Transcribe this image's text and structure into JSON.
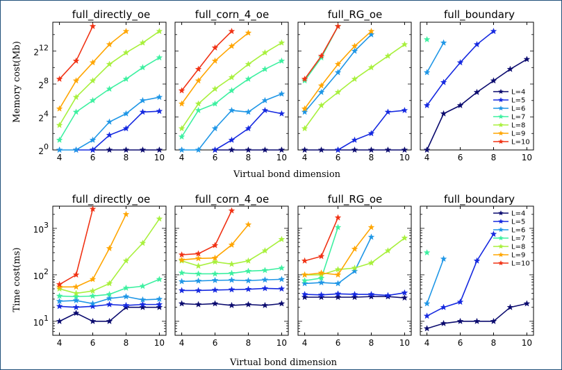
{
  "series_names": [
    "L=4",
    "L=5",
    "L=6",
    "L=7",
    "L=8",
    "L=9",
    "L=10"
  ],
  "series_colors": [
    "#0a0a6e",
    "#1428e0",
    "#1e96e6",
    "#3cf0a0",
    "#a8f03c",
    "#ffa500",
    "#f03214"
  ],
  "chart_data": [
    {
      "type": "line",
      "title": "full_directly_oe",
      "xlabel": "",
      "ylabel": "Memory cost(Mb)",
      "xlim": [
        3.6,
        10.4
      ],
      "ylim": [
        0,
        15.5
      ],
      "yscale": "log2",
      "xticks": [
        4,
        6,
        8,
        10
      ],
      "yticks": [
        {
          "value": 0,
          "label": "2^0"
        },
        {
          "value": 4,
          "label": "2^4"
        },
        {
          "value": 8,
          "label": "2^8"
        },
        {
          "value": 12,
          "label": "2^12"
        }
      ],
      "legend": "none",
      "series": [
        {
          "name": "L=4",
          "x": [
            6,
            7,
            8,
            9,
            10
          ],
          "y": [
            0,
            0,
            0,
            0,
            0
          ]
        },
        {
          "name": "L=5",
          "x": [
            5,
            6,
            7,
            8,
            9,
            10
          ],
          "y": [
            0,
            0,
            1.8,
            2.6,
            4.6,
            4.7
          ]
        },
        {
          "name": "L=6",
          "x": [
            4,
            5,
            6,
            7,
            8,
            9,
            10
          ],
          "y": [
            0,
            0,
            1.2,
            3.4,
            4.4,
            6,
            6.4
          ]
        },
        {
          "name": "L=7",
          "x": [
            4,
            5,
            6,
            7,
            8,
            9,
            10
          ],
          "y": [
            1.2,
            4.6,
            6,
            7.4,
            8.6,
            10,
            11.2
          ]
        },
        {
          "name": "L=8",
          "x": [
            4,
            5,
            6,
            7,
            8,
            9,
            10
          ],
          "y": [
            3,
            6.4,
            8.4,
            10.4,
            11.8,
            13,
            14.4
          ]
        },
        {
          "name": "L=9",
          "x": [
            4,
            5,
            6,
            7,
            8
          ],
          "y": [
            5,
            8.4,
            10.6,
            12.8,
            14.4
          ]
        },
        {
          "name": "L=10",
          "x": [
            4,
            5,
            6
          ],
          "y": [
            8.6,
            10.8,
            15
          ]
        }
      ]
    },
    {
      "type": "line",
      "title": "full_corn_4_oe",
      "xlabel": "",
      "ylabel": "",
      "xlim": [
        3.6,
        10.4
      ],
      "ylim": [
        0,
        15.5
      ],
      "yscale": "log2",
      "xticks": [
        4,
        6,
        8,
        10
      ],
      "yticks": [],
      "legend": "none",
      "series": [
        {
          "name": "L=4",
          "x": [
            6,
            7,
            8,
            9,
            10
          ],
          "y": [
            0,
            0,
            0,
            0,
            0
          ]
        },
        {
          "name": "L=5",
          "x": [
            6,
            7,
            8,
            9,
            10
          ],
          "y": [
            0,
            1.2,
            2.6,
            4.8,
            4.4
          ]
        },
        {
          "name": "L=6",
          "x": [
            4,
            5,
            6,
            7,
            8,
            9,
            10
          ],
          "y": [
            0,
            0,
            2.6,
            4.8,
            4.6,
            6,
            6.8
          ]
        },
        {
          "name": "L=7",
          "x": [
            4,
            5,
            6,
            7,
            8,
            9,
            10
          ],
          "y": [
            1.6,
            4.8,
            5.6,
            7.2,
            8.6,
            9.8,
            10.8
          ]
        },
        {
          "name": "L=8",
          "x": [
            4,
            5,
            6,
            7,
            8,
            9,
            10
          ],
          "y": [
            2.6,
            5.6,
            7.4,
            8.8,
            10.4,
            11.8,
            13
          ]
        },
        {
          "name": "L=9",
          "x": [
            4,
            5,
            6,
            7,
            8
          ],
          "y": [
            5.6,
            8.4,
            10.8,
            12.6,
            14.2
          ]
        },
        {
          "name": "L=10",
          "x": [
            4,
            5,
            6,
            7
          ],
          "y": [
            7.2,
            9.8,
            12.4,
            14.4
          ]
        }
      ]
    },
    {
      "type": "line",
      "title": "full_RG_oe",
      "xlabel": "",
      "ylabel": "",
      "xlim": [
        3.6,
        10.4
      ],
      "ylim": [
        0,
        15.5
      ],
      "yscale": "log2",
      "xticks": [
        4,
        6,
        8,
        10
      ],
      "yticks": [],
      "legend": "none",
      "series": [
        {
          "name": "L=4",
          "x": [
            4,
            5,
            6,
            7,
            8,
            9,
            10
          ],
          "y": [
            0,
            0,
            0,
            0,
            0,
            0,
            0
          ]
        },
        {
          "name": "L=5",
          "x": [
            6,
            7,
            8,
            9,
            10
          ],
          "y": [
            0,
            1.2,
            2,
            4.6,
            4.8
          ]
        },
        {
          "name": "L=6",
          "x": [
            4,
            5,
            6,
            7,
            8
          ],
          "y": [
            4.6,
            7,
            9.4,
            12,
            14
          ]
        },
        {
          "name": "L=7",
          "x": [
            4,
            5,
            6
          ],
          "y": [
            8.4,
            11.2,
            15
          ]
        },
        {
          "name": "L=8",
          "x": [
            4,
            5,
            6,
            7,
            8,
            9,
            10
          ],
          "y": [
            2.6,
            5.4,
            7,
            8.6,
            10,
            11.4,
            12.8
          ]
        },
        {
          "name": "L=9",
          "x": [
            4,
            5,
            6,
            7,
            8
          ],
          "y": [
            5,
            7.8,
            10.4,
            12.6,
            14.4
          ]
        },
        {
          "name": "L=10",
          "x": [
            4,
            5,
            6
          ],
          "y": [
            8.6,
            11.4,
            15
          ]
        }
      ]
    },
    {
      "type": "line",
      "title": "full_boundary",
      "xlabel": "",
      "ylabel": "",
      "xlim": [
        3.6,
        10.4
      ],
      "ylim": [
        0,
        15.5
      ],
      "yscale": "log2",
      "xticks": [
        4,
        6,
        8,
        10
      ],
      "yticks": [],
      "legend": "right",
      "series": [
        {
          "name": "L=4",
          "x": [
            4,
            5,
            6,
            7,
            8,
            9,
            10
          ],
          "y": [
            0,
            4.4,
            5.4,
            7,
            8.4,
            9.8,
            11
          ]
        },
        {
          "name": "L=5",
          "x": [
            4,
            5,
            6,
            7,
            8
          ],
          "y": [
            5.4,
            8.2,
            10.6,
            12.8,
            14.4
          ]
        },
        {
          "name": "L=6",
          "x": [
            4,
            5
          ],
          "y": [
            9.4,
            13
          ]
        },
        {
          "name": "L=7",
          "x": [
            4
          ],
          "y": [
            13.4
          ]
        }
      ]
    },
    {
      "type": "line",
      "title": "full_directly_oe",
      "xlabel": "",
      "ylabel": "Time cost(ms)",
      "xlim": [
        3.6,
        10.4
      ],
      "ylim": [
        5,
        3000
      ],
      "yscale": "log10",
      "xticks": [
        4,
        6,
        8,
        10
      ],
      "yticks": [
        {
          "value": 10,
          "label": "10^1"
        },
        {
          "value": 100,
          "label": "10^2"
        },
        {
          "value": 1000,
          "label": "10^3"
        }
      ],
      "legend": "none",
      "series": [
        {
          "name": "L=4",
          "x": [
            4,
            5,
            6,
            7,
            8,
            9,
            10
          ],
          "y": [
            10,
            15,
            10,
            10,
            20,
            20,
            20
          ]
        },
        {
          "name": "L=5",
          "x": [
            4,
            5,
            6,
            7,
            8,
            9,
            10
          ],
          "y": [
            21,
            20,
            21,
            23,
            22,
            23,
            23
          ]
        },
        {
          "name": "L=6",
          "x": [
            4,
            5,
            6,
            7,
            8,
            9,
            10
          ],
          "y": [
            27,
            28,
            24,
            31,
            34,
            29,
            30
          ]
        },
        {
          "name": "L=7",
          "x": [
            4,
            5,
            6,
            7,
            8,
            9,
            10
          ],
          "y": [
            35,
            34,
            35,
            38,
            52,
            57,
            80
          ]
        },
        {
          "name": "L=8",
          "x": [
            4,
            5,
            6,
            7,
            8,
            9,
            10
          ],
          "y": [
            50,
            40,
            45,
            65,
            200,
            480,
            1600
          ]
        },
        {
          "name": "L=9",
          "x": [
            4,
            5,
            6,
            7,
            8
          ],
          "y": [
            55,
            55,
            80,
            370,
            2000
          ]
        },
        {
          "name": "L=10",
          "x": [
            4,
            5,
            6
          ],
          "y": [
            62,
            100,
            2600
          ]
        }
      ]
    },
    {
      "type": "line",
      "title": "full_corn_4_oe",
      "xlabel": "",
      "ylabel": "",
      "xlim": [
        3.6,
        10.4
      ],
      "ylim": [
        5,
        3000
      ],
      "yscale": "log10",
      "xticks": [
        4,
        6,
        8,
        10
      ],
      "yticks": [],
      "legend": "none",
      "series": [
        {
          "name": "L=4",
          "x": [
            4,
            5,
            6,
            7,
            8,
            9,
            10
          ],
          "y": [
            24,
            23,
            24,
            22,
            23,
            22,
            24
          ]
        },
        {
          "name": "L=5",
          "x": [
            4,
            5,
            6,
            7,
            8,
            9,
            10
          ],
          "y": [
            46,
            46,
            47,
            48,
            49,
            51,
            50
          ]
        },
        {
          "name": "L=6",
          "x": [
            4,
            5,
            6,
            7,
            8,
            9,
            10
          ],
          "y": [
            72,
            74,
            76,
            77,
            75,
            78,
            80
          ]
        },
        {
          "name": "L=7",
          "x": [
            4,
            5,
            6,
            7,
            8,
            9,
            10
          ],
          "y": [
            110,
            105,
            105,
            108,
            120,
            125,
            140
          ]
        },
        {
          "name": "L=8",
          "x": [
            4,
            5,
            6,
            7,
            8,
            9,
            10
          ],
          "y": [
            200,
            155,
            190,
            170,
            200,
            330,
            580
          ]
        },
        {
          "name": "L=9",
          "x": [
            4,
            5,
            6,
            7,
            8
          ],
          "y": [
            210,
            225,
            230,
            440,
            1200
          ]
        },
        {
          "name": "L=10",
          "x": [
            4,
            5,
            6,
            7
          ],
          "y": [
            270,
            285,
            430,
            2400
          ]
        }
      ]
    },
    {
      "type": "line",
      "title": "full_RG_oe",
      "xlabel": "",
      "ylabel": "",
      "xlim": [
        3.6,
        10.4
      ],
      "ylim": [
        5,
        3000
      ],
      "yscale": "log10",
      "xticks": [
        4,
        6,
        8,
        10
      ],
      "yticks": [],
      "legend": "none",
      "series": [
        {
          "name": "L=4",
          "x": [
            4,
            5,
            6,
            7,
            8,
            9,
            10
          ],
          "y": [
            33,
            33,
            33,
            33,
            34,
            34,
            32
          ]
        },
        {
          "name": "L=5",
          "x": [
            4,
            5,
            6,
            7,
            8,
            9,
            10
          ],
          "y": [
            38,
            37,
            39,
            38,
            38,
            36,
            41
          ]
        },
        {
          "name": "L=6",
          "x": [
            4,
            5,
            6,
            7,
            8
          ],
          "y": [
            65,
            68,
            65,
            120,
            650
          ]
        },
        {
          "name": "L=7",
          "x": [
            4,
            5,
            6
          ],
          "y": [
            75,
            85,
            1050
          ]
        },
        {
          "name": "L=8",
          "x": [
            4,
            5,
            6,
            7,
            8,
            9,
            10
          ],
          "y": [
            100,
            100,
            130,
            140,
            180,
            330,
            620
          ]
        },
        {
          "name": "L=9",
          "x": [
            4,
            5,
            6,
            7,
            8
          ],
          "y": [
            100,
            110,
            100,
            360,
            1050
          ]
        },
        {
          "name": "L=10",
          "x": [
            4,
            5,
            6
          ],
          "y": [
            200,
            250,
            1700
          ]
        }
      ]
    },
    {
      "type": "line",
      "title": "full_boundary",
      "xlabel": "",
      "ylabel": "",
      "xlim": [
        3.6,
        10.4
      ],
      "ylim": [
        5,
        3000
      ],
      "yscale": "log10",
      "xticks": [
        4,
        6,
        8,
        10
      ],
      "yticks": [],
      "legend": "top-right",
      "series": [
        {
          "name": "L=4",
          "x": [
            4,
            5,
            6,
            7,
            8,
            9,
            10
          ],
          "y": [
            7,
            9,
            10,
            10,
            10,
            20,
            24
          ]
        },
        {
          "name": "L=5",
          "x": [
            4,
            5,
            6,
            7,
            8
          ],
          "y": [
            13,
            20,
            26,
            200,
            750
          ]
        },
        {
          "name": "L=6",
          "x": [
            4,
            5
          ],
          "y": [
            24,
            220
          ]
        },
        {
          "name": "L=7",
          "x": [
            4
          ],
          "y": [
            300
          ]
        }
      ]
    }
  ],
  "shared_xlabel": "Virtual bond dimension"
}
